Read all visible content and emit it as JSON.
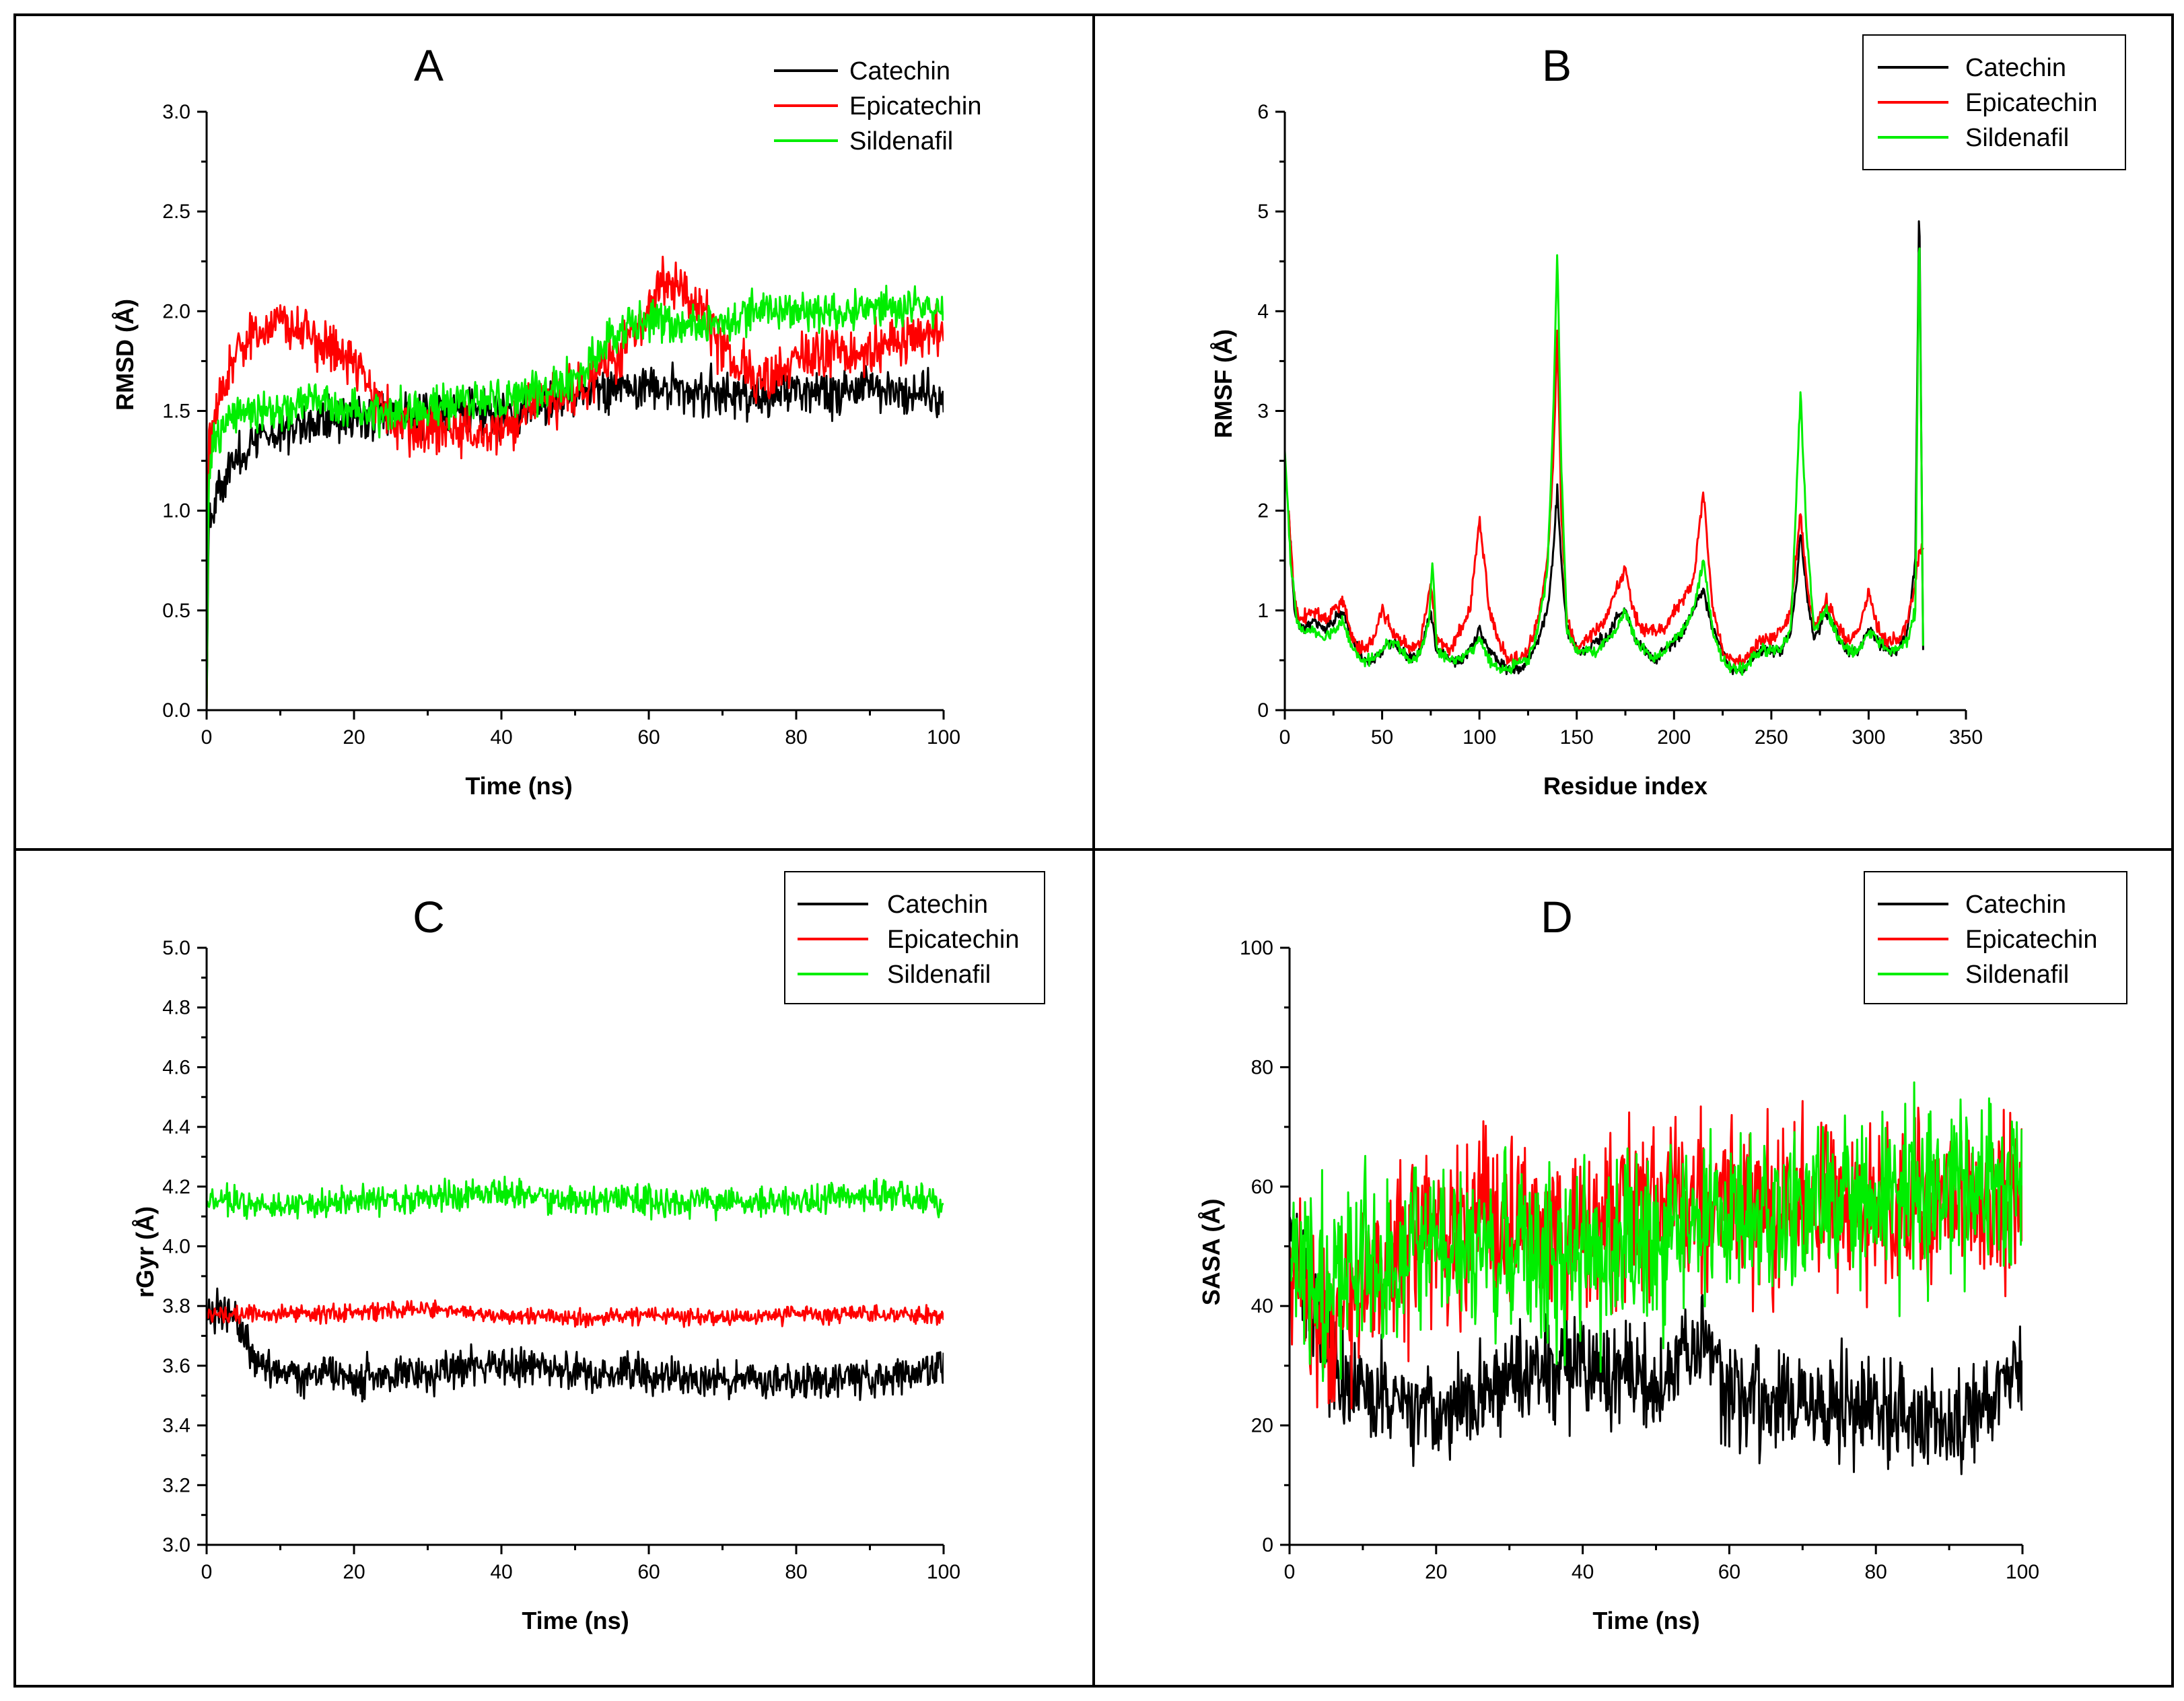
{
  "chart_data": [
    {
      "type": "line",
      "panel": "A",
      "title": "A",
      "xlabel": "Time (ns)",
      "ylabel": "RMSD (Å)",
      "xlim": [
        0,
        100
      ],
      "ylim": [
        0.0,
        3.0
      ],
      "xticks": [
        "0",
        "20",
        "40",
        "60",
        "80",
        "100"
      ],
      "yticks": [
        "0.0",
        "0.5",
        "1.0",
        "1.5",
        "2.0",
        "2.5",
        "3.0"
      ],
      "legend_position": "top-right",
      "noise_seed": 11,
      "series": [
        {
          "name": "Catechin",
          "color": "#000000",
          "noise": 0.08,
          "x": [
            0,
            0.3,
            1,
            3,
            5,
            8,
            10,
            15,
            20,
            25,
            30,
            35,
            40,
            45,
            50,
            55,
            60,
            65,
            70,
            75,
            80,
            85,
            90,
            95,
            100
          ],
          "y": [
            0.0,
            1.0,
            1.05,
            1.2,
            1.3,
            1.38,
            1.4,
            1.45,
            1.48,
            1.47,
            1.5,
            1.5,
            1.47,
            1.52,
            1.58,
            1.62,
            1.62,
            1.6,
            1.58,
            1.57,
            1.6,
            1.6,
            1.62,
            1.6,
            1.58
          ]
        },
        {
          "name": "Epicatechin",
          "color": "#ff0000",
          "noise": 0.09,
          "x": [
            0,
            0.3,
            1,
            3,
            5,
            8,
            10,
            15,
            20,
            25,
            30,
            35,
            40,
            45,
            50,
            55,
            60,
            62,
            65,
            68,
            70,
            75,
            80,
            85,
            90,
            95,
            100
          ],
          "y": [
            0.0,
            1.3,
            1.5,
            1.7,
            1.8,
            1.9,
            1.95,
            1.85,
            1.75,
            1.45,
            1.4,
            1.4,
            1.4,
            1.55,
            1.6,
            1.75,
            2.0,
            2.15,
            2.1,
            1.95,
            1.8,
            1.65,
            1.75,
            1.8,
            1.8,
            1.85,
            1.9
          ]
        },
        {
          "name": "Sildenafil",
          "color": "#00ee00",
          "noise": 0.07,
          "x": [
            0,
            0.3,
            1,
            3,
            5,
            8,
            10,
            15,
            20,
            25,
            30,
            35,
            40,
            45,
            50,
            55,
            60,
            65,
            70,
            75,
            80,
            85,
            90,
            95,
            100
          ],
          "y": [
            0.0,
            1.2,
            1.35,
            1.45,
            1.5,
            1.5,
            1.5,
            1.55,
            1.5,
            1.48,
            1.52,
            1.55,
            1.55,
            1.6,
            1.65,
            1.88,
            1.95,
            1.92,
            1.95,
            2.0,
            2.0,
            1.98,
            2.0,
            2.02,
            2.0
          ]
        }
      ]
    },
    {
      "type": "line",
      "panel": "B",
      "title": "B",
      "xlabel": "Residue index",
      "ylabel": "RMSF (Å)",
      "xlim": [
        0,
        350
      ],
      "ylim": [
        0,
        6
      ],
      "xticks": [
        "0",
        "50",
        "100",
        "150",
        "200",
        "250",
        "300",
        "350"
      ],
      "yticks": [
        "0",
        "1",
        "2",
        "3",
        "4",
        "5",
        "6"
      ],
      "legend_position": "top-right",
      "noise_seed": 23,
      "series": [
        {
          "name": "Catechin",
          "color": "#000000",
          "noise": 0.04,
          "x": [
            2,
            5,
            8,
            15,
            20,
            25,
            30,
            35,
            40,
            45,
            50,
            55,
            60,
            65,
            70,
            75,
            78,
            85,
            90,
            95,
            100,
            105,
            110,
            115,
            120,
            125,
            130,
            135,
            138,
            140,
            142,
            145,
            150,
            155,
            160,
            165,
            170,
            175,
            180,
            185,
            190,
            195,
            200,
            205,
            210,
            215,
            220,
            225,
            230,
            235,
            240,
            245,
            250,
            255,
            260,
            263,
            265,
            268,
            272,
            278,
            285,
            290,
            295,
            300,
            305,
            310,
            315,
            320,
            324,
            326,
            328
          ],
          "y": [
            2.0,
            1.0,
            0.8,
            0.9,
            0.8,
            0.9,
            1.0,
            0.7,
            0.5,
            0.5,
            0.6,
            0.7,
            0.6,
            0.5,
            0.6,
            1.0,
            0.6,
            0.5,
            0.5,
            0.6,
            0.8,
            0.6,
            0.5,
            0.4,
            0.4,
            0.5,
            0.7,
            1.0,
            1.6,
            2.2,
            1.5,
            0.8,
            0.6,
            0.6,
            0.7,
            0.7,
            0.9,
            1.0,
            0.7,
            0.6,
            0.5,
            0.6,
            0.7,
            0.8,
            1.0,
            1.2,
            0.8,
            0.6,
            0.4,
            0.4,
            0.5,
            0.6,
            0.6,
            0.6,
            0.8,
            1.3,
            1.8,
            1.2,
            0.7,
            1.0,
            0.7,
            0.6,
            0.6,
            0.8,
            0.7,
            0.6,
            0.6,
            0.8,
            1.5,
            5.2,
            0.6
          ]
        },
        {
          "name": "Epicatechin",
          "color": "#ff0000",
          "noise": 0.05,
          "x": [
            2,
            5,
            8,
            15,
            20,
            25,
            30,
            35,
            40,
            45,
            50,
            55,
            60,
            65,
            70,
            75,
            78,
            85,
            90,
            95,
            100,
            103,
            105,
            110,
            115,
            120,
            125,
            130,
            135,
            138,
            140,
            142,
            145,
            150,
            155,
            160,
            165,
            170,
            175,
            180,
            185,
            190,
            195,
            200,
            205,
            210,
            215,
            220,
            225,
            230,
            235,
            240,
            245,
            250,
            255,
            260,
            263,
            265,
            268,
            272,
            278,
            285,
            290,
            295,
            300,
            305,
            310,
            315,
            320,
            324,
            326,
            328
          ],
          "y": [
            2.0,
            1.1,
            0.9,
            1.0,
            0.9,
            1.0,
            1.1,
            0.7,
            0.6,
            0.7,
            1.0,
            0.8,
            0.7,
            0.6,
            0.7,
            1.3,
            0.7,
            0.6,
            0.8,
            1.0,
            1.9,
            1.4,
            1.0,
            0.7,
            0.5,
            0.5,
            0.6,
            0.9,
            1.5,
            2.5,
            3.8,
            2.0,
            0.9,
            0.6,
            0.7,
            0.8,
            0.9,
            1.2,
            1.4,
            0.9,
            0.8,
            0.8,
            0.8,
            1.0,
            1.1,
            1.3,
            2.2,
            1.0,
            0.6,
            0.5,
            0.5,
            0.6,
            0.7,
            0.7,
            0.8,
            1.0,
            1.6,
            2.0,
            1.3,
            0.8,
            1.1,
            0.8,
            0.7,
            0.8,
            1.2,
            0.8,
            0.7,
            0.7,
            0.9,
            1.3,
            1.6,
            1.6
          ]
        },
        {
          "name": "Sildenafil",
          "color": "#00ee00",
          "noise": 0.04,
          "x": [
            0,
            3,
            6,
            9,
            15,
            20,
            25,
            30,
            35,
            40,
            45,
            50,
            55,
            60,
            65,
            70,
            74,
            76,
            78,
            85,
            90,
            95,
            100,
            103,
            105,
            110,
            115,
            120,
            125,
            130,
            135,
            138,
            140,
            142,
            145,
            150,
            155,
            160,
            165,
            170,
            175,
            180,
            185,
            190,
            195,
            200,
            205,
            210,
            215,
            220,
            225,
            230,
            235,
            240,
            245,
            250,
            255,
            260,
            263,
            265,
            268,
            272,
            278,
            285,
            290,
            295,
            300,
            305,
            310,
            315,
            320,
            324,
            326,
            328
          ],
          "y": [
            2.6,
            1.5,
            0.9,
            0.8,
            0.8,
            0.7,
            0.8,
            0.9,
            0.6,
            0.5,
            0.5,
            0.6,
            0.7,
            0.6,
            0.5,
            0.6,
            0.9,
            1.5,
            0.6,
            0.5,
            0.5,
            0.6,
            0.7,
            0.6,
            0.5,
            0.4,
            0.4,
            0.5,
            0.5,
            0.8,
            1.4,
            3.0,
            4.6,
            2.5,
            0.8,
            0.6,
            0.6,
            0.6,
            0.7,
            0.8,
            1.0,
            0.7,
            0.6,
            0.5,
            0.6,
            0.7,
            0.8,
            1.0,
            1.5,
            0.8,
            0.5,
            0.4,
            0.4,
            0.5,
            0.6,
            0.6,
            0.6,
            0.8,
            2.2,
            3.2,
            1.8,
            0.8,
            1.0,
            0.7,
            0.6,
            0.6,
            0.8,
            0.7,
            0.6,
            0.6,
            0.7,
            1.0,
            5.0,
            0.6
          ]
        }
      ]
    },
    {
      "type": "line",
      "panel": "C",
      "title": "C",
      "xlabel": "Time (ns)",
      "ylabel": "rGyr (Å)",
      "xlim": [
        0,
        100
      ],
      "ylim": [
        3.0,
        5.0
      ],
      "xticks": [
        "0",
        "20",
        "40",
        "60",
        "80",
        "100"
      ],
      "yticks": [
        "3.0",
        "3.2",
        "3.4",
        "3.6",
        "3.8",
        "4.0",
        "4.2",
        "4.4",
        "4.6",
        "4.8",
        "5.0"
      ],
      "legend_position": "top-right",
      "noise_seed": 37,
      "series": [
        {
          "name": "Catechin",
          "color": "#000000",
          "noise": 0.045,
          "x": [
            0,
            3,
            5,
            7,
            10,
            20,
            30,
            40,
            50,
            60,
            70,
            80,
            90,
            100
          ],
          "y": [
            3.78,
            3.78,
            3.7,
            3.6,
            3.58,
            3.56,
            3.57,
            3.6,
            3.58,
            3.57,
            3.55,
            3.55,
            3.56,
            3.58
          ]
        },
        {
          "name": "Epicatechin",
          "color": "#ff0000",
          "noise": 0.02,
          "x": [
            0,
            10,
            20,
            30,
            40,
            50,
            60,
            70,
            80,
            90,
            100
          ],
          "y": [
            3.77,
            3.77,
            3.78,
            3.79,
            3.77,
            3.76,
            3.77,
            3.76,
            3.77,
            3.77,
            3.77
          ]
        },
        {
          "name": "Sildenafil",
          "color": "#00ee00",
          "noise": 0.035,
          "x": [
            0,
            10,
            20,
            30,
            40,
            50,
            60,
            70,
            80,
            90,
            100
          ],
          "y": [
            4.15,
            4.14,
            4.15,
            4.16,
            4.18,
            4.15,
            4.15,
            4.15,
            4.15,
            4.18,
            4.15
          ]
        }
      ]
    },
    {
      "type": "line",
      "panel": "D",
      "title": "D",
      "xlabel": "Time (ns)",
      "ylabel": "SASA (Å)",
      "xlim": [
        0,
        100
      ],
      "ylim": [
        0,
        100
      ],
      "xticks": [
        "0",
        "20",
        "40",
        "60",
        "80",
        "100"
      ],
      "yticks": [
        "0",
        "20",
        "40",
        "60",
        "80",
        "100"
      ],
      "legend_position": "top-right",
      "noise_seed": 53,
      "series": [
        {
          "name": "Catechin",
          "color": "#000000",
          "noise": 6,
          "x": [
            0,
            2,
            5,
            8,
            10,
            20,
            30,
            40,
            50,
            55,
            60,
            70,
            80,
            90,
            95,
            98,
            100
          ],
          "y": [
            55,
            45,
            32,
            28,
            26,
            22,
            28,
            30,
            26,
            35,
            25,
            24,
            22,
            20,
            22,
            30,
            30
          ]
        },
        {
          "name": "Epicatechin",
          "color": "#ff0000",
          "noise": 10,
          "x": [
            0,
            3,
            6,
            10,
            20,
            30,
            40,
            50,
            60,
            70,
            80,
            90,
            100
          ],
          "y": [
            50,
            40,
            32,
            45,
            52,
            55,
            52,
            58,
            57,
            56,
            57,
            58,
            58
          ]
        },
        {
          "name": "Sildenafil",
          "color": "#00ee00",
          "noise": 10,
          "x": [
            0,
            3,
            6,
            10,
            20,
            30,
            40,
            50,
            60,
            70,
            80,
            90,
            100
          ],
          "y": [
            48,
            45,
            44,
            47,
            48,
            50,
            48,
            52,
            55,
            58,
            57,
            60,
            62
          ]
        }
      ]
    }
  ]
}
